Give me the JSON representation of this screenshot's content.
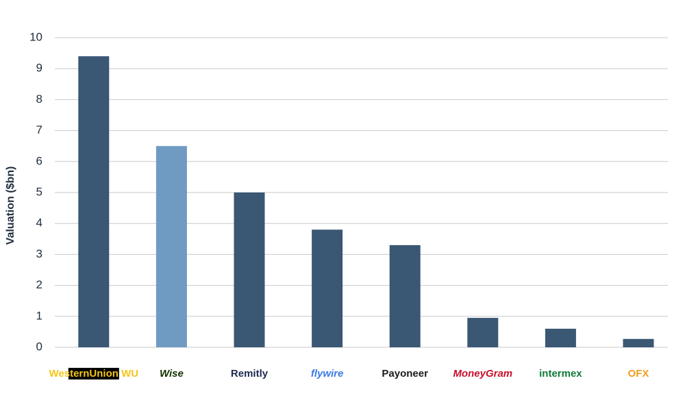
{
  "chart_data": {
    "type": "bar",
    "y_label": "Valuation ($bn)",
    "categories": [
      "WesternUnion WU",
      "Wise",
      "Remitly",
      "flywire",
      "Payoneer",
      "MoneyGram",
      "intermex",
      "OFX"
    ],
    "values": [
      9.4,
      6.5,
      5.0,
      3.8,
      3.3,
      0.95,
      0.6,
      0.27
    ],
    "colors": [
      "#3a5773",
      "#6f9bc2",
      "#3a5773",
      "#3a5773",
      "#3a5773",
      "#3a5773",
      "#3a5773",
      "#3a5773"
    ],
    "ylim": [
      0,
      10
    ],
    "yticks": [
      0,
      1,
      2,
      3,
      4,
      5,
      6,
      7,
      8,
      9,
      10
    ],
    "grid": true
  }
}
